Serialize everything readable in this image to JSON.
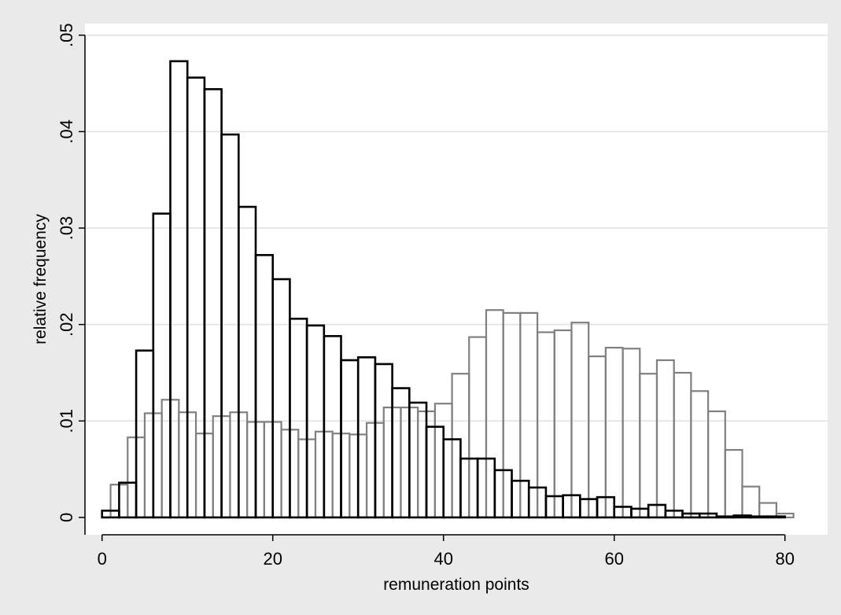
{
  "chart_data": {
    "type": "bar",
    "xlabel": "remuneration points",
    "ylabel": "relative frequency",
    "xlim": [
      -2,
      85
    ],
    "ylim": [
      -0.0018,
      0.0512
    ],
    "xticks": [
      0,
      20,
      40,
      60,
      80
    ],
    "xtick_labels": [
      "0",
      "20",
      "40",
      "60",
      "80"
    ],
    "yticks": [
      0,
      0.01,
      0.02,
      0.03,
      0.04,
      0.05
    ],
    "ytick_labels": [
      "0",
      ".01",
      ".02",
      ".03",
      ".04",
      ".05"
    ],
    "grid": true,
    "legend": "none",
    "bin_width": 2,
    "series": [
      {
        "color": "#808080",
        "bin_starts": [
          1,
          3,
          5,
          7,
          9,
          11,
          13,
          15,
          17,
          19,
          21,
          23,
          25,
          27,
          29,
          31,
          33,
          35,
          37,
          39,
          41,
          43,
          45,
          47,
          49,
          51,
          53,
          55,
          57,
          59,
          61,
          63,
          65,
          67,
          69,
          71,
          73,
          75,
          77,
          79,
          81,
          83
        ],
        "values": [
          0.0034,
          0.0083,
          0.0108,
          0.0122,
          0.0109,
          0.0087,
          0.0105,
          0.0109,
          0.0099,
          0.0099,
          0.0091,
          0.0081,
          0.0089,
          0.0087,
          0.0086,
          0.0098,
          0.0114,
          0.0114,
          0.011,
          0.0118,
          0.0149,
          0.0187,
          0.0215,
          0.0212,
          0.0212,
          0.0192,
          0.0194,
          0.0202,
          0.0167,
          0.0176,
          0.0175,
          0.0149,
          0.0163,
          0.015,
          0.0131,
          0.011,
          0.007,
          0.0032,
          0.0015,
          0.0004,
          0,
          0
        ]
      },
      {
        "color": "#000000",
        "bin_starts": [
          0,
          2,
          4,
          6,
          8,
          10,
          12,
          14,
          16,
          18,
          20,
          22,
          24,
          26,
          28,
          30,
          32,
          34,
          36,
          38,
          40,
          42,
          44,
          46,
          48,
          50,
          52,
          54,
          56,
          58,
          60,
          62,
          64,
          66,
          68,
          70,
          72,
          74,
          76,
          78
        ],
        "values": [
          0.0007,
          0.0036,
          0.0173,
          0.0315,
          0.0473,
          0.0456,
          0.0444,
          0.0397,
          0.0322,
          0.0272,
          0.0247,
          0.0206,
          0.0199,
          0.0188,
          0.0163,
          0.0166,
          0.0159,
          0.0134,
          0.0119,
          0.0094,
          0.0081,
          0.0061,
          0.0061,
          0.0049,
          0.0038,
          0.0031,
          0.0022,
          0.0023,
          0.0019,
          0.0021,
          0.0011,
          0.0009,
          0.0013,
          0.0007,
          0.0004,
          0.0004,
          0.0001,
          0.0002,
          0.0001,
          0.0001
        ]
      }
    ]
  }
}
